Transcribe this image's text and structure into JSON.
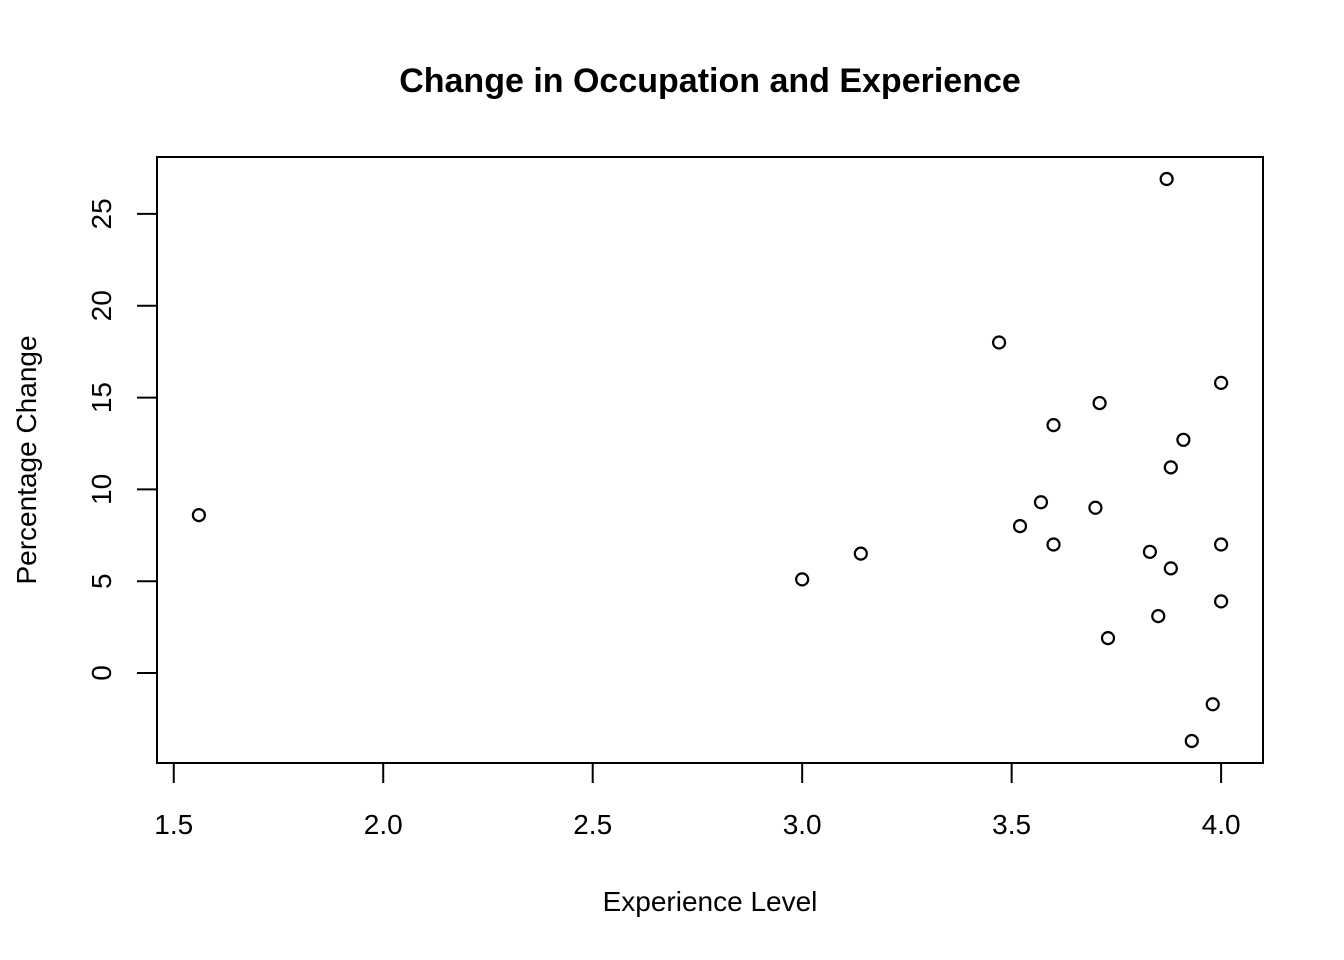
{
  "chart_data": {
    "type": "scatter",
    "title": "Change in Occupation and Experience",
    "xlabel": "Experience Level",
    "ylabel": "Percentage Change",
    "xlim": [
      1.46,
      4.1
    ],
    "ylim": [
      -4.9,
      28.1
    ],
    "x_ticks": [
      1.5,
      2.0,
      2.5,
      3.0,
      3.5,
      4.0
    ],
    "x_tick_labels": [
      "1.5",
      "2.0",
      "2.5",
      "3.0",
      "3.5",
      "4.0"
    ],
    "y_ticks": [
      0,
      5,
      10,
      15,
      20,
      25
    ],
    "y_tick_labels": [
      "0",
      "5",
      "10",
      "15",
      "20",
      "25"
    ],
    "grid": false,
    "legend": false,
    "marker": "open-circle",
    "points": [
      {
        "x": 1.56,
        "y": 8.6
      },
      {
        "x": 3.0,
        "y": 5.1
      },
      {
        "x": 3.14,
        "y": 6.5
      },
      {
        "x": 3.47,
        "y": 18.0
      },
      {
        "x": 3.52,
        "y": 8.0
      },
      {
        "x": 3.57,
        "y": 9.3
      },
      {
        "x": 3.6,
        "y": 13.5
      },
      {
        "x": 3.6,
        "y": 7.0
      },
      {
        "x": 3.7,
        "y": 9.0
      },
      {
        "x": 3.71,
        "y": 14.7
      },
      {
        "x": 3.73,
        "y": 1.9
      },
      {
        "x": 3.83,
        "y": 6.6
      },
      {
        "x": 3.85,
        "y": 3.1
      },
      {
        "x": 3.87,
        "y": 26.9
      },
      {
        "x": 3.88,
        "y": 11.2
      },
      {
        "x": 3.88,
        "y": 5.7
      },
      {
        "x": 3.91,
        "y": 12.7
      },
      {
        "x": 3.93,
        "y": -3.7
      },
      {
        "x": 3.98,
        "y": -1.7
      },
      {
        "x": 4.0,
        "y": 15.8
      },
      {
        "x": 4.0,
        "y": 7.0
      },
      {
        "x": 4.0,
        "y": 3.9
      }
    ]
  }
}
